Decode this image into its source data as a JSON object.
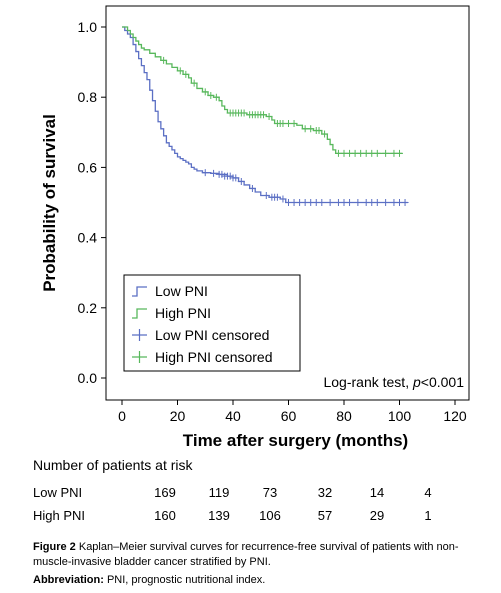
{
  "chart_data": {
    "type": "line",
    "subtype": "kaplan-meier",
    "title": "",
    "xlabel": "Time after surgery (months)",
    "ylabel": "Probability of survival",
    "xlim": [
      0,
      120
    ],
    "ylim": [
      0,
      1.0
    ],
    "x_ticks": [
      "0",
      "20",
      "40",
      "60",
      "80",
      "100",
      "120"
    ],
    "y_ticks": [
      "0.0",
      "0.2",
      "0.4",
      "0.6",
      "0.8",
      "1.0"
    ],
    "grid": false,
    "legend_position": "bottom-left",
    "legend": [
      "Low PNI",
      "High PNI",
      "Low PNI censored",
      "High PNI censored"
    ],
    "annotation_prefix": "Log-rank test, ",
    "annotation_p": "p",
    "annotation_value": "<0.001",
    "colors": {
      "low": "#5b6fc4",
      "high": "#58b85c"
    },
    "series": [
      {
        "name": "Low PNI",
        "steps": [
          [
            0,
            1.0
          ],
          [
            1,
            0.99
          ],
          [
            2,
            0.98
          ],
          [
            3,
            0.97
          ],
          [
            4,
            0.95
          ],
          [
            5,
            0.93
          ],
          [
            6,
            0.91
          ],
          [
            7,
            0.89
          ],
          [
            8,
            0.87
          ],
          [
            9,
            0.85
          ],
          [
            10,
            0.82
          ],
          [
            11,
            0.79
          ],
          [
            12,
            0.76
          ],
          [
            13,
            0.73
          ],
          [
            14,
            0.71
          ],
          [
            15,
            0.69
          ],
          [
            16,
            0.67
          ],
          [
            17,
            0.66
          ],
          [
            18,
            0.65
          ],
          [
            19,
            0.64
          ],
          [
            20,
            0.63
          ],
          [
            21,
            0.625
          ],
          [
            22,
            0.62
          ],
          [
            23,
            0.615
          ],
          [
            24,
            0.61
          ],
          [
            25,
            0.6
          ],
          [
            26,
            0.595
          ],
          [
            27,
            0.59
          ],
          [
            29,
            0.585
          ],
          [
            32,
            0.583
          ],
          [
            35,
            0.58
          ],
          [
            38,
            0.575
          ],
          [
            40,
            0.57
          ],
          [
            42,
            0.56
          ],
          [
            44,
            0.55
          ],
          [
            46,
            0.54
          ],
          [
            48,
            0.53
          ],
          [
            50,
            0.52
          ],
          [
            53,
            0.515
          ],
          [
            57,
            0.51
          ],
          [
            59,
            0.5
          ],
          [
            103,
            0.5
          ]
        ],
        "censored": [
          [
            30,
            0.585
          ],
          [
            33,
            0.583
          ],
          [
            35,
            0.58
          ],
          [
            36,
            0.58
          ],
          [
            37,
            0.575
          ],
          [
            38,
            0.575
          ],
          [
            39,
            0.575
          ],
          [
            40,
            0.57
          ],
          [
            41,
            0.57
          ],
          [
            43,
            0.56
          ],
          [
            47,
            0.54
          ],
          [
            52,
            0.52
          ],
          [
            54,
            0.515
          ],
          [
            55,
            0.515
          ],
          [
            56,
            0.515
          ],
          [
            58,
            0.51
          ],
          [
            60,
            0.5
          ],
          [
            62,
            0.5
          ],
          [
            64,
            0.5
          ],
          [
            66,
            0.5
          ],
          [
            68,
            0.5
          ],
          [
            70,
            0.5
          ],
          [
            72,
            0.5
          ],
          [
            75,
            0.5
          ],
          [
            78,
            0.5
          ],
          [
            80,
            0.5
          ],
          [
            82,
            0.5
          ],
          [
            85,
            0.5
          ],
          [
            88,
            0.5
          ],
          [
            90,
            0.5
          ],
          [
            92,
            0.5
          ],
          [
            95,
            0.5
          ],
          [
            98,
            0.5
          ],
          [
            100,
            0.5
          ],
          [
            102,
            0.5
          ]
        ]
      },
      {
        "name": "High PNI",
        "steps": [
          [
            0,
            1.0
          ],
          [
            2,
            0.99
          ],
          [
            3,
            0.98
          ],
          [
            4,
            0.97
          ],
          [
            5,
            0.96
          ],
          [
            6,
            0.95
          ],
          [
            7,
            0.94
          ],
          [
            8,
            0.935
          ],
          [
            10,
            0.925
          ],
          [
            12,
            0.915
          ],
          [
            14,
            0.905
          ],
          [
            16,
            0.895
          ],
          [
            18,
            0.885
          ],
          [
            20,
            0.875
          ],
          [
            22,
            0.865
          ],
          [
            24,
            0.855
          ],
          [
            25,
            0.84
          ],
          [
            27,
            0.825
          ],
          [
            29,
            0.815
          ],
          [
            31,
            0.805
          ],
          [
            33,
            0.8
          ],
          [
            35,
            0.79
          ],
          [
            36,
            0.775
          ],
          [
            37,
            0.765
          ],
          [
            38,
            0.755
          ],
          [
            45,
            0.75
          ],
          [
            52,
            0.745
          ],
          [
            54,
            0.735
          ],
          [
            55,
            0.725
          ],
          [
            63,
            0.72
          ],
          [
            65,
            0.71
          ],
          [
            69,
            0.705
          ],
          [
            72,
            0.695
          ],
          [
            74,
            0.68
          ],
          [
            75,
            0.665
          ],
          [
            76,
            0.65
          ],
          [
            77,
            0.64
          ],
          [
            101,
            0.64
          ]
        ],
        "censored": [
          [
            15,
            0.905
          ],
          [
            21,
            0.875
          ],
          [
            23,
            0.865
          ],
          [
            26,
            0.84
          ],
          [
            30,
            0.815
          ],
          [
            32,
            0.805
          ],
          [
            34,
            0.8
          ],
          [
            39,
            0.755
          ],
          [
            40,
            0.755
          ],
          [
            41,
            0.755
          ],
          [
            42,
            0.755
          ],
          [
            43,
            0.755
          ],
          [
            44,
            0.755
          ],
          [
            46,
            0.75
          ],
          [
            47,
            0.75
          ],
          [
            48,
            0.75
          ],
          [
            49,
            0.75
          ],
          [
            50,
            0.75
          ],
          [
            51,
            0.75
          ],
          [
            53,
            0.745
          ],
          [
            56,
            0.725
          ],
          [
            57,
            0.725
          ],
          [
            58,
            0.725
          ],
          [
            60,
            0.725
          ],
          [
            62,
            0.725
          ],
          [
            66,
            0.71
          ],
          [
            68,
            0.71
          ],
          [
            70,
            0.705
          ],
          [
            71,
            0.705
          ],
          [
            73,
            0.695
          ],
          [
            78,
            0.64
          ],
          [
            80,
            0.64
          ],
          [
            82,
            0.64
          ],
          [
            84,
            0.64
          ],
          [
            86,
            0.64
          ],
          [
            88,
            0.64
          ],
          [
            90,
            0.64
          ],
          [
            92,
            0.64
          ],
          [
            95,
            0.64
          ],
          [
            98,
            0.64
          ],
          [
            100,
            0.64
          ]
        ]
      }
    ],
    "risk_table": {
      "header": "Number of patients at risk",
      "rows": [
        {
          "label": "Low PNI",
          "values": [
            "169",
            "119",
            "73",
            "32",
            "14",
            "4"
          ]
        },
        {
          "label": "High PNI",
          "values": [
            "160",
            "139",
            "106",
            "57",
            "29",
            "1"
          ]
        }
      ]
    }
  },
  "caption": {
    "figure_label": "Figure 2",
    "figure_text": " Kaplan–Meier survival curves for recurrence-free survival of patients with non-muscle-invasive bladder cancer stratified by PNI.",
    "abbrev_label": "Abbreviation:",
    "abbrev_text": " PNI, prognostic nutritional index."
  }
}
